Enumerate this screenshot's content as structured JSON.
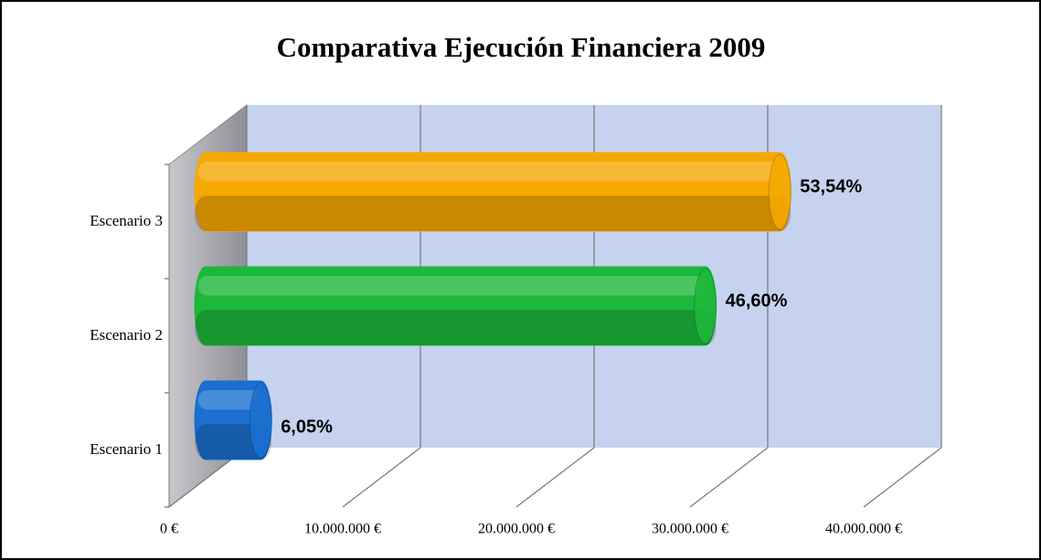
{
  "chart_data": {
    "type": "bar3d",
    "title": "Comparativa Ejecución Financiera 2009",
    "categories": [
      "Escenario 1",
      "Escenario 2",
      "Escenario 3"
    ],
    "values": [
      3800000,
      29400000,
      33700000
    ],
    "percent_labels": [
      "6,05%",
      "46,60%",
      "53,54%"
    ],
    "colors": [
      "#1a6fd0",
      "#1cb83a",
      "#f5a800"
    ],
    "xlim": [
      0,
      40000000
    ],
    "xticks": [
      {
        "value": 0,
        "label": "0 €"
      },
      {
        "value": 10000000,
        "label": "10.000.000 €"
      },
      {
        "value": 20000000,
        "label": "20.000.000 €"
      },
      {
        "value": 30000000,
        "label": "30.000.000 €"
      },
      {
        "value": 40000000,
        "label": "40.000.000 €"
      }
    ],
    "grid": true
  }
}
